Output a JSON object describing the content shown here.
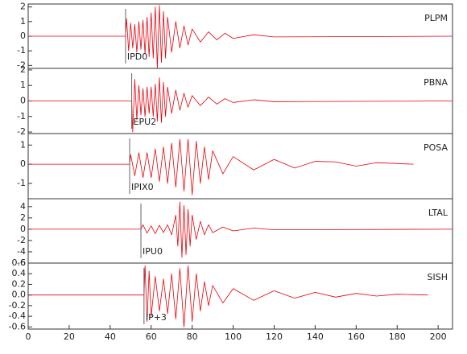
{
  "chart_data": [
    {
      "type": "line",
      "title": "PLPM",
      "xlim": [
        0,
        207
      ],
      "ylim": [
        -2.2,
        2.2
      ],
      "yticks": [
        -2,
        -1,
        0,
        1,
        2
      ],
      "pick": {
        "label": "IPD0",
        "x": 47.5
      },
      "series": [
        {
          "color": "#e8000b",
          "x": [
            0,
            47.5,
            48,
            49,
            50,
            51,
            52,
            53,
            54,
            55,
            56,
            57,
            58,
            59,
            60,
            61,
            62,
            63,
            64,
            65,
            66,
            67,
            68,
            70,
            72,
            74,
            76,
            78,
            80,
            84,
            88,
            92,
            96,
            100,
            110,
            120,
            207
          ],
          "values": [
            0,
            0,
            1.2,
            -1.0,
            0.9,
            -0.8,
            0.8,
            -1.1,
            1.0,
            -0.9,
            1.1,
            -1.2,
            1.3,
            -1.4,
            1.6,
            -1.5,
            2.0,
            -2.2,
            2.1,
            -1.8,
            1.7,
            -1.5,
            1.3,
            -1.1,
            1.0,
            -0.8,
            0.7,
            -0.6,
            0.5,
            -0.4,
            0.3,
            -0.25,
            0.2,
            -0.15,
            0.1,
            -0.05,
            0
          ]
        }
      ]
    },
    {
      "type": "line",
      "title": "PBNA",
      "xlim": [
        0,
        207
      ],
      "ylim": [
        -2.1,
        2.1
      ],
      "yticks": [
        -2,
        -1,
        0,
        1,
        2
      ],
      "pick": {
        "label": "EPU2",
        "x": 50.5
      },
      "series": [
        {
          "color": "#e8000b",
          "x": [
            0,
            50.5,
            51,
            52,
            53,
            54,
            55,
            56,
            57,
            58,
            59,
            60,
            61,
            62,
            63,
            64,
            65,
            66,
            67,
            68,
            70,
            72,
            74,
            76,
            78,
            80,
            84,
            88,
            92,
            96,
            100,
            110,
            120,
            207
          ],
          "values": [
            0,
            0,
            -2.0,
            1.4,
            -1.2,
            1.0,
            -0.9,
            0.8,
            -1.0,
            0.9,
            -0.8,
            0.9,
            -1.0,
            1.1,
            -1.3,
            1.5,
            -1.4,
            1.2,
            -1.0,
            0.9,
            -0.8,
            0.7,
            -0.6,
            0.5,
            -0.4,
            0.35,
            -0.3,
            0.25,
            -0.2,
            0.15,
            -0.1,
            0.08,
            -0.05,
            0
          ]
        }
      ]
    },
    {
      "type": "line",
      "title": "POSA",
      "xlim": [
        0,
        207
      ],
      "ylim": [
        -1.8,
        1.6
      ],
      "yticks": [
        -1,
        0,
        1
      ],
      "pick": {
        "label": "IPIX0",
        "x": 49.5
      },
      "series": [
        {
          "color": "#e8000b",
          "x": [
            0,
            49.5,
            50,
            52,
            54,
            56,
            58,
            60,
            62,
            64,
            66,
            68,
            70,
            72,
            74,
            76,
            78,
            80,
            82,
            84,
            86,
            88,
            90,
            95,
            100,
            110,
            120,
            130,
            140,
            150,
            160,
            170,
            188
          ],
          "values": [
            0,
            0,
            0.5,
            -0.6,
            0.6,
            -0.7,
            0.6,
            -0.7,
            0.8,
            -0.9,
            0.9,
            -1.0,
            1.1,
            -1.2,
            1.3,
            -1.4,
            1.3,
            -1.6,
            1.2,
            -1.0,
            0.9,
            -0.8,
            0.7,
            -0.5,
            0.4,
            -0.3,
            0.25,
            -0.2,
            0.15,
            0.12,
            -0.1,
            0.08,
            0
          ]
        }
      ]
    },
    {
      "type": "line",
      "title": "LTAL",
      "xlim": [
        0,
        207
      ],
      "ylim": [
        -6,
        5.4
      ],
      "yticks": [
        -6,
        -4,
        -2,
        0,
        2,
        4
      ],
      "pick": {
        "label": "IPU0",
        "x": 55
      },
      "series": [
        {
          "color": "#e8000b",
          "x": [
            0,
            55,
            56,
            58,
            60,
            62,
            64,
            66,
            68,
            70,
            72,
            73,
            74,
            75,
            76,
            77,
            78,
            79,
            80,
            82,
            84,
            86,
            88,
            90,
            95,
            100,
            110,
            120,
            207
          ],
          "values": [
            0,
            0,
            0.8,
            -0.7,
            0.6,
            -0.8,
            0.7,
            -0.6,
            0.8,
            -1.0,
            2.5,
            -3.0,
            4.8,
            -5.0,
            4.2,
            -4.5,
            3.5,
            -3.0,
            2.5,
            -1.8,
            1.4,
            -1.0,
            0.8,
            -0.6,
            0.4,
            -0.3,
            0.2,
            -0.1,
            0
          ]
        }
      ]
    },
    {
      "type": "line",
      "title": "SISH",
      "xlim": [
        0,
        207
      ],
      "ylim": [
        -0.64,
        0.6
      ],
      "yticks": [
        -0.6,
        -0.4,
        -0.2,
        {
          "value": 0,
          "label": "0.0"
        },
        0.2,
        0.4,
        0.6
      ],
      "xticks": [
        0,
        20,
        40,
        60,
        80,
        100,
        120,
        140,
        160,
        180,
        200
      ],
      "pick": {
        "label": "IP+3",
        "x": 56.5
      },
      "series": [
        {
          "color": "#e8000b",
          "x": [
            0,
            56.5,
            57,
            58,
            59,
            60,
            62,
            64,
            66,
            68,
            70,
            72,
            74,
            76,
            78,
            80,
            82,
            84,
            86,
            88,
            90,
            95,
            100,
            110,
            120,
            130,
            140,
            150,
            160,
            170,
            180,
            195
          ],
          "values": [
            0,
            0,
            0.55,
            -0.5,
            0.45,
            -0.4,
            0.35,
            -0.3,
            0.3,
            -0.35,
            0.4,
            -0.45,
            0.5,
            -0.6,
            0.55,
            -0.5,
            0.4,
            -0.3,
            0.25,
            -0.2,
            0.18,
            -0.15,
            0.12,
            -0.1,
            0.08,
            -0.06,
            0.05,
            -0.04,
            0.03,
            -0.02,
            0.015,
            0
          ]
        }
      ]
    }
  ]
}
